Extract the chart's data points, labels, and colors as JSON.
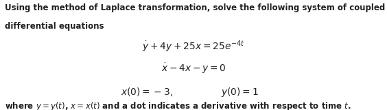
{
  "line1": "Using the method of Laplace transformation, solve the following system of coupled ordinary",
  "line2": "differential equations",
  "eq1": "$\\dot{y} + 4y + 25x = 25e^{-4t}$",
  "eq2": "$\\dot{x} - 4x - y = 0$",
  "eq3": "$x(0) = -3,$",
  "eq4": "$y(0) = 1$",
  "footer": "where $y = y(t)$, $x = x(t)$ and a dot indicates a derivative with respect to time $t$.",
  "bg_color": "#ffffff",
  "text_color": "#231f20",
  "font_size_body": 8.5,
  "font_size_eq": 10.0,
  "font_size_footer": 8.5,
  "fig_width": 5.64,
  "fig_height": 1.61,
  "dpi": 100
}
